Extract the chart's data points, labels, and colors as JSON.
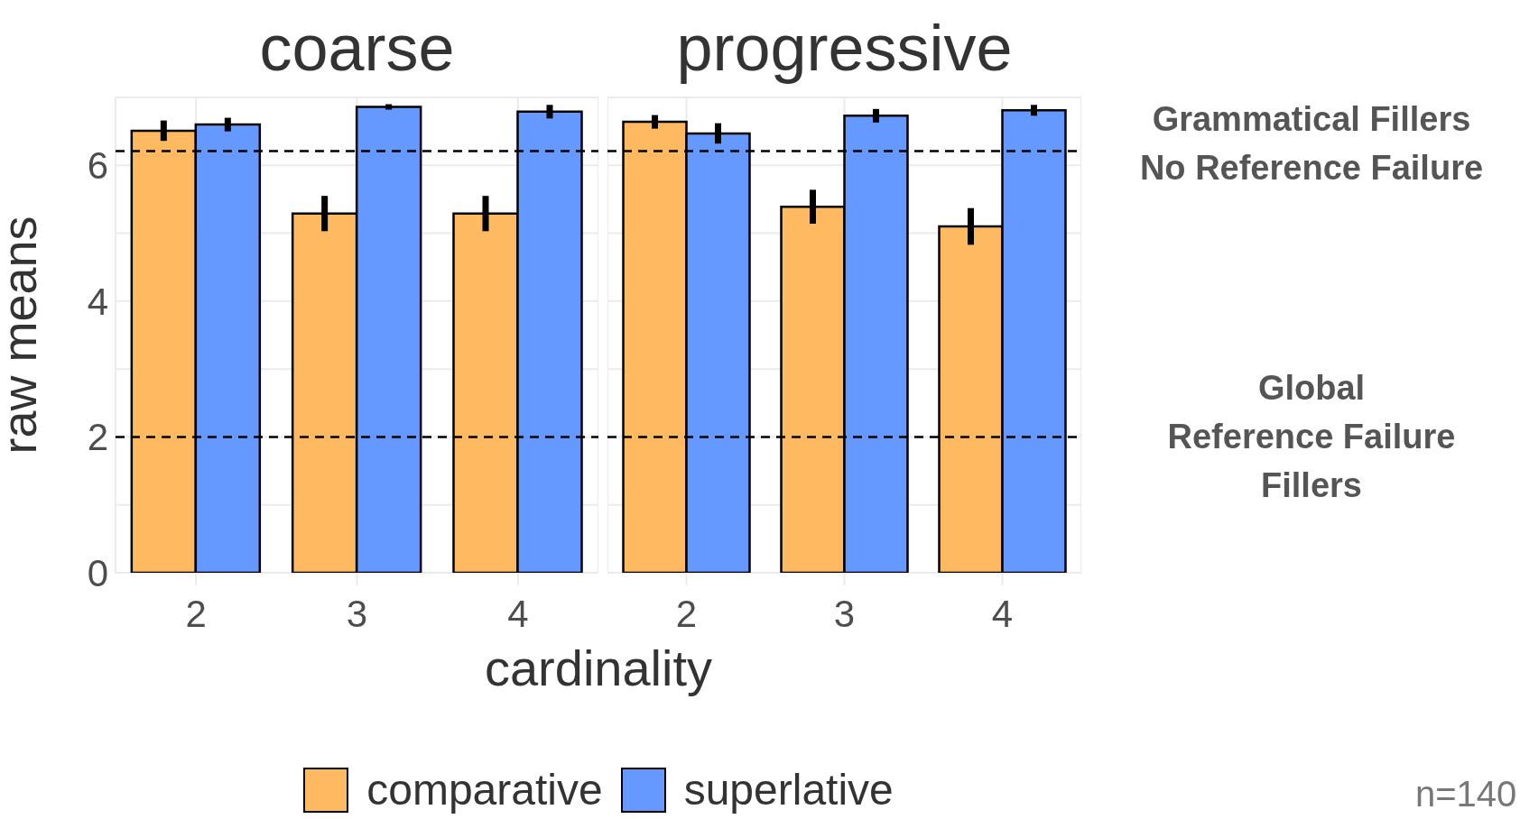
{
  "chart_data": [
    {
      "type": "bar",
      "title": "coarse",
      "ylabel": "raw means",
      "xlabel": "cardinality",
      "categories": [
        "2",
        "3",
        "4"
      ],
      "series": [
        {
          "name": "comparative",
          "color": "#ffb961",
          "values": [
            6.51,
            5.29,
            5.29
          ],
          "errors": [
            0.15,
            0.26,
            0.26
          ]
        },
        {
          "name": "superlative",
          "color": "#6699ff",
          "values": [
            6.6,
            6.86,
            6.79
          ],
          "errors": [
            0.1,
            0.04,
            0.1
          ]
        }
      ],
      "ylim": [
        0,
        7
      ],
      "yticks": [
        0,
        {
          "value": 1,
          "label": null
        },
        2,
        {
          "value": 3,
          "label": null
        },
        4,
        {
          "value": 5,
          "label": null
        },
        6,
        {
          "value": 7,
          "label": null
        }
      ],
      "grid": true,
      "legend": "bottom",
      "ref_lines": [
        {
          "axis": "y",
          "value": 6.21,
          "line_style": "dashed"
        },
        {
          "axis": "y",
          "value": 2,
          "line_style": "dashed"
        }
      ]
    },
    {
      "type": "bar",
      "title": "progressive",
      "categories": [
        "2",
        "3",
        "4"
      ],
      "series": [
        {
          "color": "#ffb961",
          "values": [
            6.64,
            5.39,
            5.1
          ],
          "errors": [
            0.1,
            0.25,
            0.27
          ]
        },
        {
          "color": "#6699ff",
          "values": [
            6.47,
            6.73,
            6.81
          ],
          "errors": [
            0.15,
            0.1,
            0.08
          ]
        }
      ],
      "ylim": [
        0,
        7
      ],
      "yticks": [
        0,
        {
          "value": 1,
          "label": null
        },
        2,
        {
          "value": 3,
          "label": null
        },
        4,
        {
          "value": 5,
          "label": null
        },
        6,
        {
          "value": 7,
          "label": null
        }
      ],
      "grid": true,
      "tick_labels": "x",
      "ref_lines": [
        {
          "axis": "y",
          "value": 6.21,
          "label": "Grammatical Fillers\nNo Reference Failure",
          "line_style": "dashed"
        },
        {
          "axis": "y",
          "value": 2,
          "label": "Global\nReference Failure\nFillers",
          "line_style": "dashed"
        }
      ],
      "annotations": [
        "n=140"
      ]
    }
  ]
}
